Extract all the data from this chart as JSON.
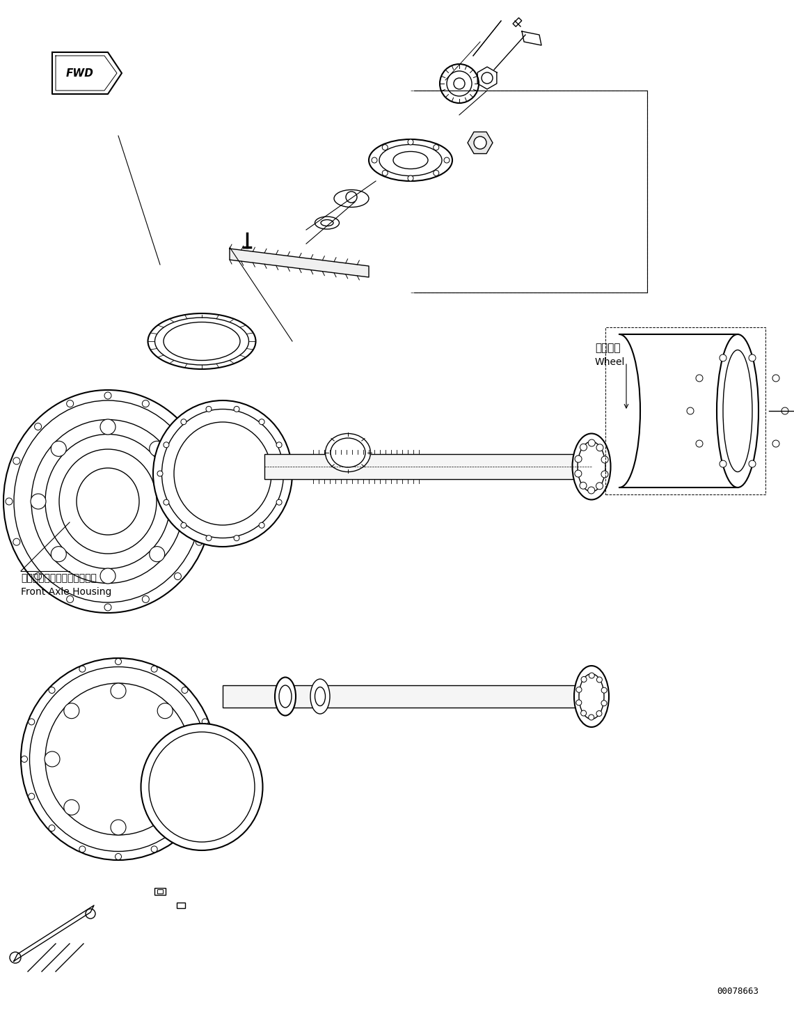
{
  "bg_color": "#ffffff",
  "line_color": "#000000",
  "fig_width": 11.41,
  "fig_height": 14.56,
  "dpi": 100,
  "part_number": "00078663",
  "label_front_axle_jp": "フロントアクスルハウジング",
  "label_front_axle_en": "Front Axle Housing",
  "label_wheel_jp": "ホイール",
  "label_wheel_en": "Wheel",
  "label_fwd": "FWD"
}
